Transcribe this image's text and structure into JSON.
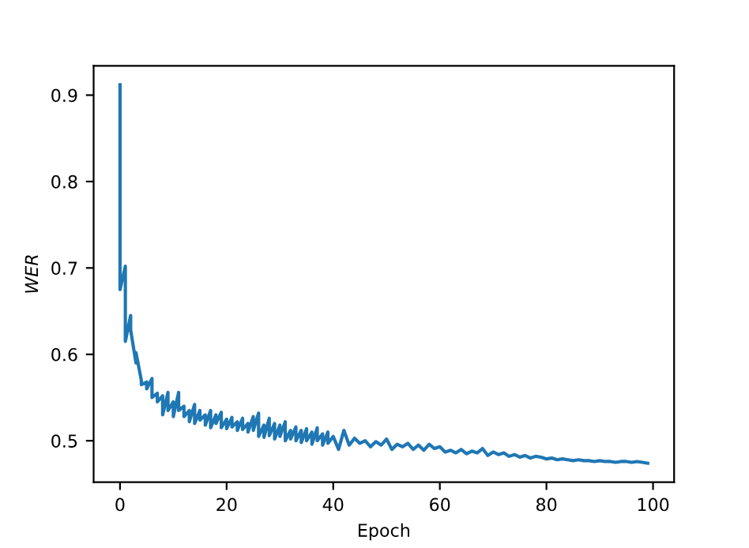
{
  "chart_data": {
    "type": "line",
    "xlabel": "Epoch",
    "ylabel": "WER",
    "x": [
      0,
      0,
      1,
      1,
      2,
      2,
      3,
      3,
      4,
      4,
      5,
      5,
      6,
      6,
      7,
      7,
      8,
      8,
      9,
      9,
      10,
      10,
      11,
      11,
      12,
      12,
      13,
      13,
      14,
      14,
      15,
      15,
      16,
      16,
      17,
      17,
      18,
      18,
      19,
      19,
      20,
      20,
      21,
      21,
      22,
      22,
      23,
      23,
      24,
      24,
      25,
      25,
      26,
      26,
      27,
      27,
      28,
      28,
      29,
      29,
      30,
      30,
      31,
      31,
      32,
      32,
      33,
      33,
      34,
      34,
      35,
      35,
      36,
      36,
      37,
      37,
      38,
      38,
      39,
      39,
      40,
      41,
      42,
      43,
      44,
      45,
      46,
      47,
      48,
      49,
      50,
      51,
      52,
      53,
      54,
      55,
      56,
      57,
      58,
      59,
      60,
      61,
      62,
      63,
      64,
      65,
      66,
      67,
      68,
      69,
      70,
      71,
      72,
      73,
      74,
      75,
      76,
      77,
      78,
      79,
      80,
      81,
      82,
      83,
      84,
      85,
      86,
      87,
      88,
      89,
      90,
      91,
      92,
      93,
      94,
      95,
      96,
      97,
      98,
      99
    ],
    "series": [
      {
        "color": "#1f77b4",
        "values": [
          0.912,
          0.675,
          0.702,
          0.615,
          0.645,
          0.628,
          0.59,
          0.602,
          0.57,
          0.565,
          0.568,
          0.56,
          0.572,
          0.55,
          0.555,
          0.545,
          0.552,
          0.53,
          0.556,
          0.535,
          0.545,
          0.528,
          0.556,
          0.535,
          0.54,
          0.528,
          0.535,
          0.522,
          0.542,
          0.52,
          0.535,
          0.524,
          0.53,
          0.518,
          0.535,
          0.515,
          0.53,
          0.52,
          0.533,
          0.515,
          0.525,
          0.514,
          0.527,
          0.516,
          0.522,
          0.512,
          0.526,
          0.513,
          0.52,
          0.51,
          0.528,
          0.512,
          0.532,
          0.505,
          0.518,
          0.504,
          0.526,
          0.506,
          0.52,
          0.502,
          0.518,
          0.505,
          0.522,
          0.5,
          0.512,
          0.502,
          0.516,
          0.5,
          0.512,
          0.498,
          0.514,
          0.5,
          0.51,
          0.496,
          0.515,
          0.5,
          0.508,
          0.495,
          0.51,
          0.497,
          0.505,
          0.49,
          0.512,
          0.495,
          0.503,
          0.497,
          0.5,
          0.493,
          0.499,
          0.495,
          0.502,
          0.49,
          0.496,
          0.493,
          0.497,
          0.49,
          0.495,
          0.489,
          0.496,
          0.491,
          0.493,
          0.487,
          0.489,
          0.486,
          0.49,
          0.485,
          0.488,
          0.486,
          0.491,
          0.483,
          0.487,
          0.484,
          0.486,
          0.482,
          0.484,
          0.481,
          0.483,
          0.48,
          0.482,
          0.481,
          0.479,
          0.48,
          0.478,
          0.479,
          0.478,
          0.477,
          0.478,
          0.477,
          0.477,
          0.476,
          0.477,
          0.476,
          0.476,
          0.475,
          0.476,
          0.476,
          0.475,
          0.476,
          0.475,
          0.474
        ]
      }
    ],
    "xlim": [
      -4.95,
      103.95
    ],
    "ylim": [
      0.452,
      0.934
    ],
    "xticks": [
      0,
      20,
      40,
      60,
      80,
      100
    ],
    "yticks": [
      0.5,
      0.6,
      0.7,
      0.8,
      0.9
    ],
    "grid": false,
    "legend": false,
    "marker": "none",
    "line_style": "solid"
  }
}
